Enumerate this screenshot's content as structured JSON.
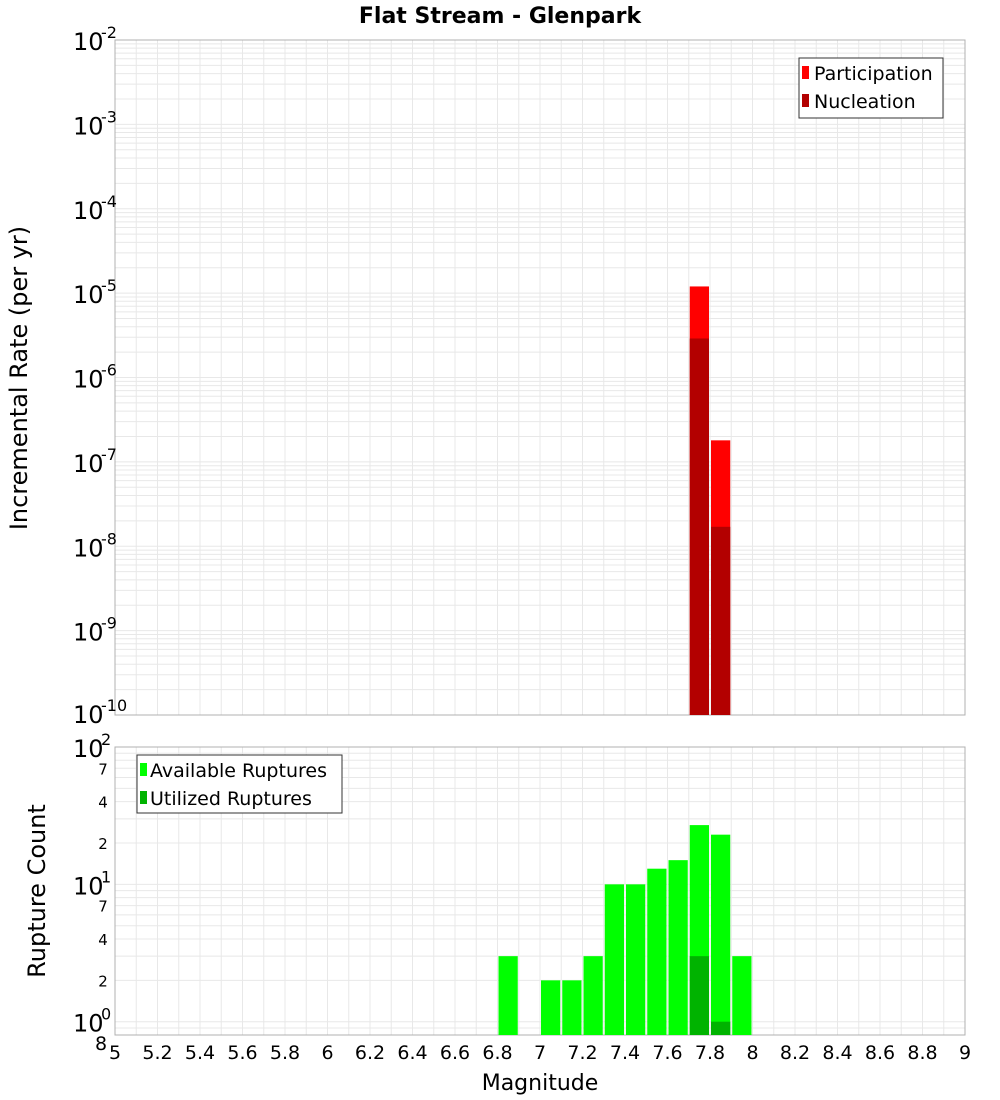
{
  "chart_data": [
    {
      "type": "bar",
      "title": "Flat Stream - Glenpark",
      "ylabel": "Incremental Rate (per yr)",
      "xlabel": "Magnitude",
      "yscale": "log",
      "ylim": [
        1e-10,
        0.01
      ],
      "xlim": [
        5,
        9
      ],
      "y_tick_labels": [
        {
          "base": "10",
          "exp": "-2"
        },
        {
          "base": "10",
          "exp": "-3"
        },
        {
          "base": "10",
          "exp": "-4"
        },
        {
          "base": "10",
          "exp": "-5"
        },
        {
          "base": "10",
          "exp": "-6"
        },
        {
          "base": "10",
          "exp": "-7"
        },
        {
          "base": "10",
          "exp": "-8"
        },
        {
          "base": "10",
          "exp": "-9"
        },
        {
          "base": "10",
          "exp": "-10"
        }
      ],
      "legend": {
        "position": "top-right",
        "entries": [
          "Participation",
          "Nucleation"
        ]
      },
      "colors": {
        "Participation": "#ff0000",
        "Nucleation": "#b30000"
      },
      "bar_width": 0.1,
      "series": [
        {
          "name": "Participation",
          "x": [
            7.75,
            7.85
          ],
          "values": [
            1.2e-05,
            1.8e-07
          ]
        },
        {
          "name": "Nucleation",
          "x": [
            7.75,
            7.85
          ],
          "values": [
            2.9e-06,
            1.7e-08
          ]
        }
      ]
    },
    {
      "type": "bar",
      "ylabel": "Rupture Count",
      "xlabel": "Magnitude",
      "yscale": "log",
      "ylim": [
        0.8,
        100
      ],
      "xlim": [
        5,
        9
      ],
      "x_tick_labels": [
        "5",
        "5.2",
        "5.4",
        "5.6",
        "5.8",
        "6",
        "6.2",
        "6.4",
        "6.6",
        "6.8",
        "7",
        "7.2",
        "7.4",
        "7.6",
        "7.8",
        "8",
        "8.2",
        "8.4",
        "8.6",
        "8.8",
        "9"
      ],
      "y_tick_labels": [
        {
          "base": "10",
          "exp": "2"
        },
        {
          "base": "10",
          "exp": "1"
        },
        {
          "base": "10",
          "exp": "0"
        }
      ],
      "y_minor_tick_labels": [
        {
          "label": "7",
          "value": 70
        },
        {
          "label": "4",
          "value": 40
        },
        {
          "label": "2",
          "value": 20
        },
        {
          "label": "7",
          "value": 7
        },
        {
          "label": "4",
          "value": 4
        },
        {
          "label": "2",
          "value": 2
        },
        {
          "label": "8",
          "value": 0.8
        }
      ],
      "legend": {
        "position": "top-left",
        "entries": [
          "Available Ruptures",
          "Utilized Ruptures"
        ]
      },
      "colors": {
        "Available Ruptures": "#00ff00",
        "Utilized Ruptures": "#00b300"
      },
      "bar_width": 0.1,
      "series": [
        {
          "name": "Available Ruptures",
          "x": [
            6.85,
            7.05,
            7.15,
            7.25,
            7.35,
            7.45,
            7.55,
            7.65,
            7.75,
            7.85,
            7.95
          ],
          "values": [
            3,
            2,
            2,
            3,
            10,
            10,
            13,
            15,
            27,
            23,
            3
          ]
        },
        {
          "name": "Utilized Ruptures",
          "x": [
            7.75,
            7.85
          ],
          "values": [
            3,
            1
          ]
        }
      ]
    }
  ]
}
